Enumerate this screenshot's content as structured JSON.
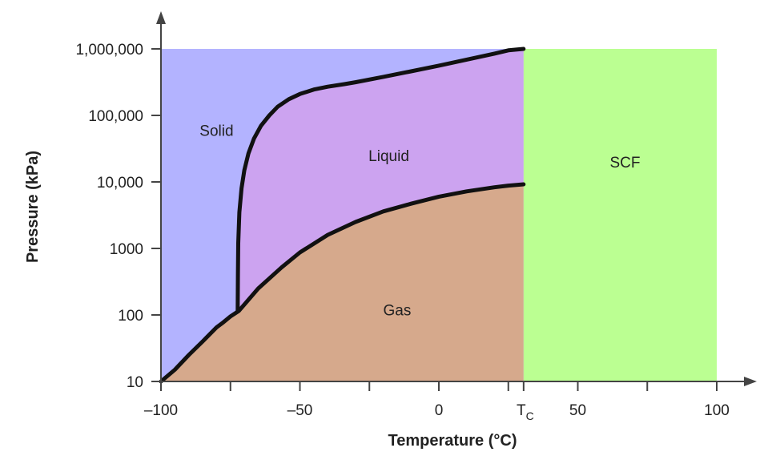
{
  "chart_data": {
    "type": "area",
    "title": "",
    "xlabel": "Temperature (°C)",
    "ylabel": "Pressure (kPa)",
    "x_range": [
      -100,
      100
    ],
    "y_range": [
      10,
      1000000
    ],
    "y_scale": "log",
    "x_ticks": [
      {
        "value": -100,
        "label": "–100"
      },
      {
        "value": -75,
        "label": ""
      },
      {
        "value": -50,
        "label": "–50"
      },
      {
        "value": -25,
        "label": ""
      },
      {
        "value": 0,
        "label": "0"
      },
      {
        "value": 25,
        "label": ""
      },
      {
        "value": 50,
        "label": "50"
      },
      {
        "value": 75,
        "label": ""
      },
      {
        "value": 100,
        "label": "100"
      }
    ],
    "critical_temperature": {
      "value": 30.5,
      "label": "T",
      "subscript": "C"
    },
    "y_ticks": [
      {
        "value": 10,
        "label": "10"
      },
      {
        "value": 100,
        "label": "100"
      },
      {
        "value": 1000,
        "label": "1000"
      },
      {
        "value": 10000,
        "label": "10,000"
      },
      {
        "value": 100000,
        "label": "100,000"
      },
      {
        "value": 1000000,
        "label": "1,000,000"
      }
    ],
    "grid": false,
    "legend": "none",
    "regions": [
      {
        "name": "Solid",
        "label_at": {
          "x": -80,
          "y": 60000
        },
        "color": "#b3b3ff"
      },
      {
        "name": "Liquid",
        "label_at": {
          "x": -18,
          "y": 25000
        },
        "color": "#cca3f0"
      },
      {
        "name": "Gas",
        "label_at": {
          "x": -15,
          "y": 120
        },
        "color": "#d6a98c"
      },
      {
        "name": "SCF",
        "label_at": {
          "x": 67,
          "y": 20000
        },
        "color": "#bbff92"
      }
    ],
    "curves": [
      {
        "name": "sublimation-vaporization",
        "x": [
          -100,
          -95,
          -90,
          -85,
          -80,
          -78,
          -75,
          -72,
          -65,
          -56.6,
          -50,
          -40,
          -30,
          -20,
          -10,
          0,
          10,
          20,
          25,
          30.5
        ],
        "y": [
          10,
          15,
          25,
          40,
          65,
          75,
          95,
          115,
          250,
          518,
          870,
          1600,
          2500,
          3600,
          4700,
          6000,
          7200,
          8300,
          8800,
          9200
        ]
      },
      {
        "name": "melting",
        "x": [
          -72.4,
          -72.3,
          -72.2,
          -71.8,
          -71.0,
          -70.0,
          -68.5,
          -66.5,
          -64.0,
          -61.0,
          -58.0,
          -54.0,
          -50.0,
          -45.0,
          -40.0,
          -34.0,
          -30.0,
          -20.0,
          -10.0,
          0.0,
          10.0,
          20.0,
          25.0,
          30.5
        ],
        "y": [
          115,
          400,
          1200,
          3500,
          8000,
          15000,
          27000,
          45000,
          70000,
          100000,
          135000,
          175000,
          210000,
          245000,
          270000,
          295000,
          315000,
          380000,
          460000,
          560000,
          690000,
          850000,
          950000,
          1000000
        ]
      }
    ],
    "colors": {
      "solid": "#b3b3ff",
      "liquid": "#cca3f0",
      "gas": "#d6a98c",
      "scf": "#bbff92",
      "curve": "#111111",
      "axis": "#444444"
    }
  }
}
